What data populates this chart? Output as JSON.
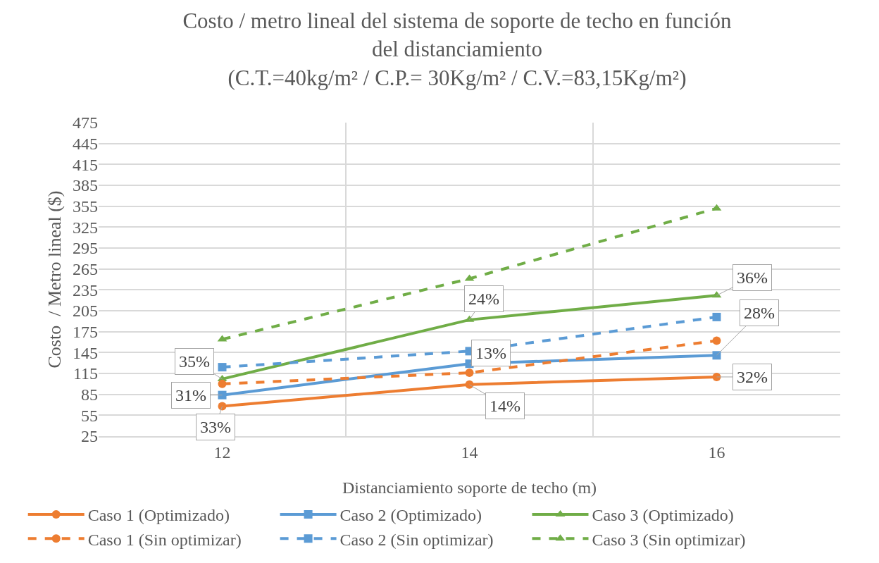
{
  "chart_data": {
    "type": "line",
    "title": "Costo / metro lineal del sistema de soporte de techo en función\ndel distanciamiento\n(C.T.=40kg/m² / C.P.= 30Kg/m² / C.V.=83,15Kg/m²)",
    "xlabel": "Distanciamiento soporte de techo (m)",
    "ylabel": "Costo  / Metro lineal ($)",
    "categories": [
      "12",
      "14",
      "16"
    ],
    "series": [
      {
        "name": "Caso 1 (Optimizado)",
        "color": "#ed7d31",
        "marker": "circle",
        "line_style": "solid",
        "values": [
          68,
          99,
          110
        ]
      },
      {
        "name": "Caso 2 (Optimizado)",
        "color": "#5b9bd5",
        "marker": "square",
        "line_style": "solid",
        "values": [
          84,
          129,
          141
        ]
      },
      {
        "name": "Caso 3 (Optimizado)",
        "color": "#70ad47",
        "marker": "triangle",
        "line_style": "solid",
        "values": [
          107,
          192,
          227
        ]
      },
      {
        "name": "Caso 1 (Sin optimizar)",
        "color": "#ed7d31",
        "marker": "circle",
        "line_style": "dashed",
        "values": [
          100,
          116,
          162
        ]
      },
      {
        "name": "Caso 2 (Sin optimizar)",
        "color": "#5b9bd5",
        "marker": "square",
        "line_style": "dashed",
        "values": [
          124,
          147,
          196
        ]
      },
      {
        "name": "Caso 3 (Sin optimizar)",
        "color": "#70ad47",
        "marker": "triangle",
        "line_style": "dashed",
        "values": [
          164,
          251,
          352
        ]
      }
    ],
    "ylim": [
      25,
      475
    ],
    "yticks": [
      25,
      55,
      85,
      115,
      145,
      175,
      205,
      235,
      265,
      295,
      325,
      355,
      385,
      415,
      445,
      475
    ],
    "grid": true,
    "legend": "bottom",
    "annotations": [
      {
        "text": "35%",
        "x": "12",
        "y": 107
      },
      {
        "text": "31%",
        "x": "12",
        "y": 84
      },
      {
        "text": "33%",
        "x": "12",
        "y": 68
      },
      {
        "text": "24%",
        "x": "14",
        "y": 192
      },
      {
        "text": "13%",
        "x": "14",
        "y": 129
      },
      {
        "text": "14%",
        "x": "14",
        "y": 99
      },
      {
        "text": "36%",
        "x": "16",
        "y": 227
      },
      {
        "text": "28%",
        "x": "16",
        "y": 141
      },
      {
        "text": "32%",
        "x": "16",
        "y": 110
      }
    ]
  }
}
